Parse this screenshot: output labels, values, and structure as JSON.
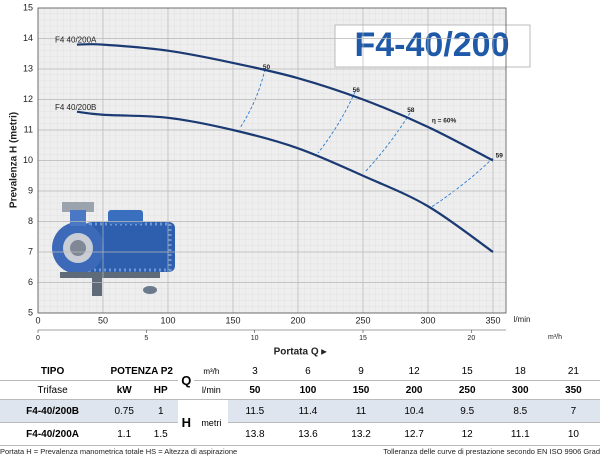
{
  "chart_data": {
    "type": "line",
    "title": "F4-40/200",
    "ylabel": "Prevalenza H (metri)",
    "xlabel": "Portata Q ▸",
    "xunit": "l/min",
    "x2unit": "m³/h",
    "xlim": [
      0,
      360
    ],
    "xticks": [
      0,
      50,
      100,
      150,
      200,
      250,
      300,
      350
    ],
    "x2lim": [
      0,
      21.6
    ],
    "x2ticks": [
      0,
      5,
      10,
      15,
      20
    ],
    "ylim": [
      5,
      15
    ],
    "yticks": [
      5,
      6,
      7,
      8,
      9,
      10,
      11,
      12,
      13,
      14,
      15
    ],
    "grid": true,
    "series": [
      {
        "name": "F4 40/200A",
        "color": "#1b3a73",
        "x": [
          30,
          50,
          100,
          150,
          200,
          250,
          300,
          350
        ],
        "values": [
          13.8,
          13.8,
          13.6,
          13.2,
          12.7,
          12,
          11.1,
          10
        ]
      },
      {
        "name": "F4 40/200B",
        "color": "#1b3a73",
        "x": [
          30,
          50,
          100,
          150,
          200,
          250,
          300,
          350
        ],
        "values": [
          11.6,
          11.5,
          11.4,
          11,
          10.4,
          9.5,
          8.5,
          7
        ]
      }
    ],
    "annotations": [
      {
        "text": "50",
        "x": 173,
        "y": 13.05
      },
      {
        "text": "56",
        "x": 242,
        "y": 12.3
      },
      {
        "text": "58",
        "x": 284,
        "y": 11.65
      },
      {
        "text": "η = 60%",
        "x": 303,
        "y": 11.3
      },
      {
        "text": "59",
        "x": 352,
        "y": 10.15
      }
    ]
  },
  "table": {
    "header": [
      "TIPO",
      "POTENZA P2",
      "Q",
      "m³/h"
    ],
    "flow_m3h": [
      3,
      6,
      9,
      12,
      15,
      18,
      21
    ],
    "subheader": [
      "Trifase",
      "kW",
      "HP",
      "l/min"
    ],
    "flow_lmin": [
      50,
      100,
      150,
      200,
      250,
      300,
      350
    ],
    "h_label": "H",
    "h_unit": "metri",
    "rows": [
      {
        "model": "F4-40/200B",
        "kw": 0.75,
        "hp": 1,
        "h": [
          11.5,
          11.4,
          11,
          10.4,
          9.5,
          8.5,
          7
        ]
      },
      {
        "model": "F4-40/200A",
        "kw": 1.1,
        "hp": 1.5,
        "h": [
          13.8,
          13.6,
          13.2,
          12.7,
          12,
          11.1,
          10
        ]
      }
    ]
  },
  "footer": {
    "left": "Portata  H = Prevalenza manometrica totale   HS = Altezza di aspirazione",
    "right": "Tolleranza delle curve di prestazione secondo EN ISO 9906 Grad"
  }
}
